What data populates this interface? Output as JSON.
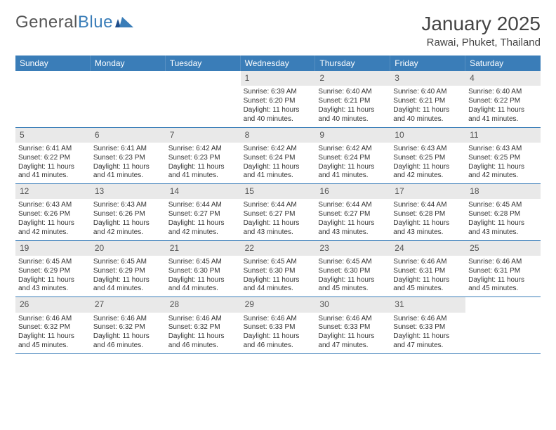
{
  "brand": {
    "part1": "General",
    "part2": "Blue"
  },
  "title": "January 2025",
  "location": "Rawai, Phuket, Thailand",
  "colors": {
    "header_bg": "#3a7db8",
    "header_text": "#ffffff",
    "daynum_bg": "#e9e9e9",
    "week_divider": "#3a7db8",
    "body_text": "#333333",
    "logo_gray": "#6a6a6a",
    "logo_blue": "#3a7db8",
    "page_bg": "#ffffff"
  },
  "typography": {
    "title_fontsize_pt": 21,
    "location_fontsize_pt": 11,
    "dow_fontsize_pt": 9,
    "daynum_fontsize_pt": 9,
    "body_fontsize_pt": 7.5,
    "font_family": "Arial"
  },
  "dow": [
    "Sunday",
    "Monday",
    "Tuesday",
    "Wednesday",
    "Thursday",
    "Friday",
    "Saturday"
  ],
  "weeks": [
    [
      {
        "n": "",
        "sr": "",
        "ss": "",
        "dl": "",
        "empty": true
      },
      {
        "n": "",
        "sr": "",
        "ss": "",
        "dl": "",
        "empty": true
      },
      {
        "n": "",
        "sr": "",
        "ss": "",
        "dl": "",
        "empty": true
      },
      {
        "n": "1",
        "sr": "6:39 AM",
        "ss": "6:20 PM",
        "dl": "11 hours and 40 minutes."
      },
      {
        "n": "2",
        "sr": "6:40 AM",
        "ss": "6:21 PM",
        "dl": "11 hours and 40 minutes."
      },
      {
        "n": "3",
        "sr": "6:40 AM",
        "ss": "6:21 PM",
        "dl": "11 hours and 40 minutes."
      },
      {
        "n": "4",
        "sr": "6:40 AM",
        "ss": "6:22 PM",
        "dl": "11 hours and 41 minutes."
      }
    ],
    [
      {
        "n": "5",
        "sr": "6:41 AM",
        "ss": "6:22 PM",
        "dl": "11 hours and 41 minutes."
      },
      {
        "n": "6",
        "sr": "6:41 AM",
        "ss": "6:23 PM",
        "dl": "11 hours and 41 minutes."
      },
      {
        "n": "7",
        "sr": "6:42 AM",
        "ss": "6:23 PM",
        "dl": "11 hours and 41 minutes."
      },
      {
        "n": "8",
        "sr": "6:42 AM",
        "ss": "6:24 PM",
        "dl": "11 hours and 41 minutes."
      },
      {
        "n": "9",
        "sr": "6:42 AM",
        "ss": "6:24 PM",
        "dl": "11 hours and 41 minutes."
      },
      {
        "n": "10",
        "sr": "6:43 AM",
        "ss": "6:25 PM",
        "dl": "11 hours and 42 minutes."
      },
      {
        "n": "11",
        "sr": "6:43 AM",
        "ss": "6:25 PM",
        "dl": "11 hours and 42 minutes."
      }
    ],
    [
      {
        "n": "12",
        "sr": "6:43 AM",
        "ss": "6:26 PM",
        "dl": "11 hours and 42 minutes."
      },
      {
        "n": "13",
        "sr": "6:43 AM",
        "ss": "6:26 PM",
        "dl": "11 hours and 42 minutes."
      },
      {
        "n": "14",
        "sr": "6:44 AM",
        "ss": "6:27 PM",
        "dl": "11 hours and 42 minutes."
      },
      {
        "n": "15",
        "sr": "6:44 AM",
        "ss": "6:27 PM",
        "dl": "11 hours and 43 minutes."
      },
      {
        "n": "16",
        "sr": "6:44 AM",
        "ss": "6:27 PM",
        "dl": "11 hours and 43 minutes."
      },
      {
        "n": "17",
        "sr": "6:44 AM",
        "ss": "6:28 PM",
        "dl": "11 hours and 43 minutes."
      },
      {
        "n": "18",
        "sr": "6:45 AM",
        "ss": "6:28 PM",
        "dl": "11 hours and 43 minutes."
      }
    ],
    [
      {
        "n": "19",
        "sr": "6:45 AM",
        "ss": "6:29 PM",
        "dl": "11 hours and 43 minutes."
      },
      {
        "n": "20",
        "sr": "6:45 AM",
        "ss": "6:29 PM",
        "dl": "11 hours and 44 minutes."
      },
      {
        "n": "21",
        "sr": "6:45 AM",
        "ss": "6:30 PM",
        "dl": "11 hours and 44 minutes."
      },
      {
        "n": "22",
        "sr": "6:45 AM",
        "ss": "6:30 PM",
        "dl": "11 hours and 44 minutes."
      },
      {
        "n": "23",
        "sr": "6:45 AM",
        "ss": "6:30 PM",
        "dl": "11 hours and 45 minutes."
      },
      {
        "n": "24",
        "sr": "6:46 AM",
        "ss": "6:31 PM",
        "dl": "11 hours and 45 minutes."
      },
      {
        "n": "25",
        "sr": "6:46 AM",
        "ss": "6:31 PM",
        "dl": "11 hours and 45 minutes."
      }
    ],
    [
      {
        "n": "26",
        "sr": "6:46 AM",
        "ss": "6:32 PM",
        "dl": "11 hours and 45 minutes."
      },
      {
        "n": "27",
        "sr": "6:46 AM",
        "ss": "6:32 PM",
        "dl": "11 hours and 46 minutes."
      },
      {
        "n": "28",
        "sr": "6:46 AM",
        "ss": "6:32 PM",
        "dl": "11 hours and 46 minutes."
      },
      {
        "n": "29",
        "sr": "6:46 AM",
        "ss": "6:33 PM",
        "dl": "11 hours and 46 minutes."
      },
      {
        "n": "30",
        "sr": "6:46 AM",
        "ss": "6:33 PM",
        "dl": "11 hours and 47 minutes."
      },
      {
        "n": "31",
        "sr": "6:46 AM",
        "ss": "6:33 PM",
        "dl": "11 hours and 47 minutes."
      },
      {
        "n": "",
        "sr": "",
        "ss": "",
        "dl": "",
        "empty": true
      }
    ]
  ],
  "labels": {
    "sunrise_prefix": "Sunrise: ",
    "sunset_prefix": "Sunset: ",
    "daylight_prefix": "Daylight: "
  }
}
